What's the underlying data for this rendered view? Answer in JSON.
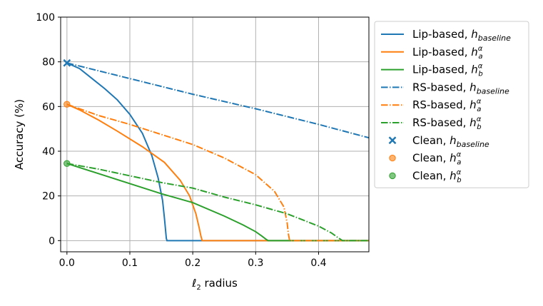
{
  "chart_data": {
    "type": "line",
    "xlabel_var": "ℓ",
    "xlabel_sub": "2",
    "xlabel_rest": " radius",
    "ylabel": "Accuracy (%)",
    "xlim": [
      -0.01,
      0.48
    ],
    "ylim": [
      -5,
      100
    ],
    "xticks": [
      0.0,
      0.1,
      0.2,
      0.3,
      0.4
    ],
    "xtick_labels": [
      "0.0",
      "0.1",
      "0.2",
      "0.3",
      "0.4"
    ],
    "yticks": [
      0,
      20,
      40,
      60,
      80,
      100
    ],
    "ytick_labels": [
      "0",
      "20",
      "40",
      "60",
      "80",
      "100"
    ],
    "grid": true,
    "legend_placement": "outside-right",
    "series": [
      {
        "name_prefix": "Lip-based, ",
        "name_var": "h",
        "name_sub": "baseline",
        "name_sup": "",
        "color": "#1f77b4",
        "style": "solid",
        "x": [
          0,
          0.02,
          0.04,
          0.06,
          0.08,
          0.1,
          0.12,
          0.135,
          0.145,
          0.152,
          0.155,
          0.157,
          0.158,
          0.159,
          0.48
        ],
        "y": [
          79.5,
          77,
          72.5,
          68,
          63,
          56.5,
          48,
          38,
          28,
          18,
          10,
          4,
          1,
          0,
          0
        ]
      },
      {
        "name_prefix": "Lip-based, ",
        "name_var": "h",
        "name_sub": "a",
        "name_sup": "α",
        "color": "#ff7f0e",
        "style": "solid",
        "x": [
          0,
          0.02,
          0.05,
          0.08,
          0.12,
          0.155,
          0.18,
          0.195,
          0.205,
          0.21,
          0.213,
          0.215,
          0.48
        ],
        "y": [
          61,
          58.5,
          54,
          49,
          42,
          35,
          27,
          20,
          12,
          6,
          2,
          0,
          0
        ]
      },
      {
        "name_prefix": "Lip-based, ",
        "name_var": "h",
        "name_sub": "b",
        "name_sup": "α",
        "color": "#2ca02c",
        "style": "solid",
        "x": [
          0,
          0.05,
          0.1,
          0.15,
          0.2,
          0.25,
          0.28,
          0.3,
          0.31,
          0.317,
          0.32,
          0.48
        ],
        "y": [
          34.5,
          30,
          25.5,
          21,
          17,
          11,
          7,
          4,
          2,
          0.5,
          0,
          0
        ]
      },
      {
        "name_prefix": "RS-based, ",
        "name_var": "h",
        "name_sub": "baseline",
        "name_sup": "",
        "color": "#1f77b4",
        "style": "dashdot",
        "x": [
          0,
          0.1,
          0.2,
          0.3,
          0.4,
          0.48
        ],
        "y": [
          79.5,
          72.5,
          65.5,
          59,
          52,
          46
        ]
      },
      {
        "name_prefix": "RS-based, ",
        "name_var": "h",
        "name_sub": "a",
        "name_sup": "α",
        "color": "#ff7f0e",
        "style": "dashdot",
        "x": [
          0,
          0.05,
          0.1,
          0.15,
          0.2,
          0.25,
          0.3,
          0.33,
          0.345,
          0.35,
          0.352,
          0.354,
          0.48
        ],
        "y": [
          61,
          56,
          52,
          47.5,
          43,
          37,
          29.5,
          22,
          15,
          8,
          3,
          0,
          0
        ]
      },
      {
        "name_prefix": "RS-based, ",
        "name_var": "h",
        "name_sub": "b",
        "name_sup": "α",
        "color": "#2ca02c",
        "style": "dashdot",
        "x": [
          0,
          0.05,
          0.1,
          0.15,
          0.2,
          0.25,
          0.3,
          0.35,
          0.4,
          0.42,
          0.43,
          0.438,
          0.48
        ],
        "y": [
          34.5,
          32,
          29,
          26,
          23.5,
          19.5,
          16,
          12,
          6.5,
          3.5,
          1.5,
          0,
          0
        ]
      }
    ],
    "clean_points": [
      {
        "name_prefix": "Clean, ",
        "name_var": "h",
        "name_sub": "baseline",
        "name_sup": "",
        "x": 0,
        "y": 79.5,
        "color": "#1f77b4",
        "marker": "x"
      },
      {
        "name_prefix": "Clean, ",
        "name_var": "h",
        "name_sub": "a",
        "name_sup": "α",
        "x": 0,
        "y": 61,
        "color": "#ff7f0e",
        "marker": "circle"
      },
      {
        "name_prefix": "Clean, ",
        "name_var": "h",
        "name_sub": "b",
        "name_sup": "α",
        "x": 0,
        "y": 34.5,
        "color": "#2ca02c",
        "marker": "circle"
      }
    ]
  }
}
